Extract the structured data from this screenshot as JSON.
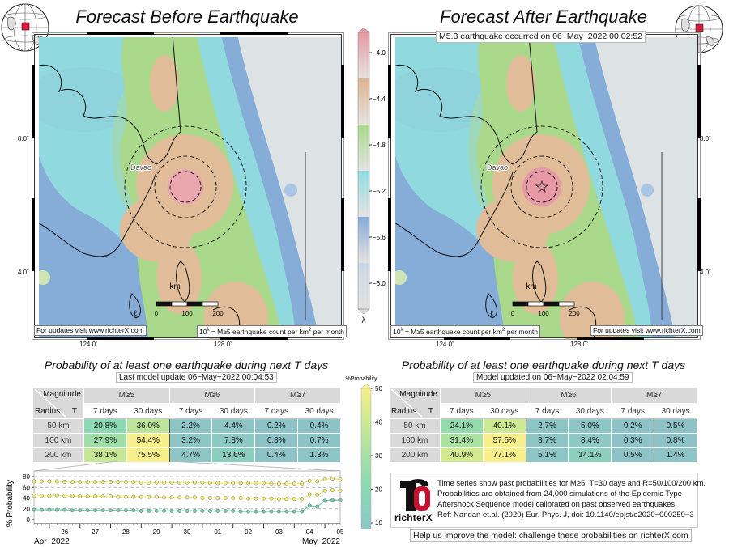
{
  "left_panel": {
    "title": "Forecast Before Earthquake",
    "note_updates": "For updates visit www.richterX.com",
    "note_lambda_prefix": "10",
    "note_lambda_sup": "λ",
    "note_lambda_text": " = M≥5 earthquake count per km",
    "note_lambda_sup2": "2",
    "note_lambda_tail": " per month",
    "lat_labels": [
      "8.0˚",
      "4.0˚"
    ],
    "lon_labels": [
      "124.0˚",
      "128.0˚"
    ],
    "city": "Davao",
    "scale_labels": [
      "0",
      "100",
      "200"
    ],
    "scale_unit": "km",
    "table_title": "Probability of at least one earthquake during next T days",
    "update_text": "Last model update 06−May−2022 00:04:53",
    "table": {
      "corner_top": "Magnitude",
      "corner_left": "Radius",
      "corner_right": "T",
      "magnitudes": [
        "M≥5",
        "M≥6",
        "M≥7"
      ],
      "periods": [
        "7 days",
        "30 days",
        "7 days",
        "30 days",
        "7 days",
        "30 days"
      ],
      "rows": [
        {
          "radius": "50 km",
          "values": [
            "20.8%",
            "36.0%",
            "2.2%",
            "4.4%",
            "0.2%",
            "0.4%"
          ]
        },
        {
          "radius": "100 km",
          "values": [
            "27.9%",
            "54.4%",
            "3.2%",
            "7.8%",
            "0.3%",
            "0.7%"
          ]
        },
        {
          "radius": "200 km",
          "values": [
            "38.1%",
            "75.5%",
            "4.7%",
            "13.6%",
            "0.4%",
            "1.3%"
          ]
        }
      ]
    }
  },
  "right_panel": {
    "title": "Forecast After Earthquake",
    "event_label": "M5.3 earthquake occurred on 06−May−2022 00:02:52",
    "note_updates": "For updates visit www.richterX.com",
    "note_lambda_prefix": "10",
    "note_lambda_sup": "λ",
    "note_lambda_text": " = M≥5 earthquake count per km",
    "note_lambda_sup2": "2",
    "note_lambda_tail": " per month",
    "lat_labels": [
      "8.0˚",
      "4.0˚"
    ],
    "lon_labels": [
      "124.0˚",
      "128.0˚"
    ],
    "city": "Davao",
    "scale_labels": [
      "0",
      "100",
      "200"
    ],
    "scale_unit": "km",
    "table_title": "Probability of at least one earthquake during next T days",
    "update_text": "Model updated on 06−May−2022 02:04:59",
    "table": {
      "corner_top": "Magnitude",
      "corner_left": "Radius",
      "corner_right": "T",
      "magnitudes": [
        "M≥5",
        "M≥6",
        "M≥7"
      ],
      "periods": [
        "7 days",
        "30 days",
        "7 days",
        "30 days",
        "7 days",
        "30 days"
      ],
      "rows": [
        {
          "radius": "50 km",
          "values": [
            "24.1%",
            "40.1%",
            "2.7%",
            "5.0%",
            "0.2%",
            "0.5%"
          ]
        },
        {
          "radius": "100 km",
          "values": [
            "31.4%",
            "57.5%",
            "3.7%",
            "8.4%",
            "0.3%",
            "0.8%"
          ]
        },
        {
          "radius": "200 km",
          "values": [
            "40.9%",
            "77.1%",
            "5.1%",
            "14.1%",
            "0.5%",
            "1.4%"
          ]
        }
      ]
    }
  },
  "lambda_colorbar": {
    "label": "λ",
    "ticks": [
      "−4.0",
      "−4.4",
      "−4.8",
      "−5.2",
      "−5.6",
      "−6.0"
    ],
    "colors": [
      "#e39aa3",
      "#dcb48f",
      "#a8d98a",
      "#8fdde0",
      "#86acd8",
      "#c9d6e4"
    ]
  },
  "prob_colorbar": {
    "label": "%Probability",
    "ticks": [
      "50",
      "40",
      "30",
      "20",
      "10"
    ],
    "stops": [
      {
        "value": 0,
        "color": "#8dc3c6"
      },
      {
        "value": 10,
        "color": "#8dc9c4"
      },
      {
        "value": 20,
        "color": "#8ad8b4"
      },
      {
        "value": 30,
        "color": "#a6e0a6"
      },
      {
        "value": 40,
        "color": "#cde993"
      },
      {
        "value": 50,
        "color": "#f7ef8b"
      }
    ]
  },
  "chart_data": {
    "type": "line",
    "ylabel": "% Probability",
    "ylim": [
      -5,
      85
    ],
    "yticks": [
      0,
      20,
      40,
      60,
      80
    ],
    "x_tick_labels": [
      "26",
      "27",
      "28",
      "29",
      "30",
      "01",
      "02",
      "03",
      "04",
      "05"
    ],
    "x_month_labels": [
      "Apr−2022",
      "May−2022"
    ],
    "grid": "dashed horizontal at 20,40,60,80",
    "x": [
      "2022-04-25T12",
      "2022-04-25T18",
      "2022-04-26T00",
      "2022-04-26T06",
      "2022-04-26T12",
      "2022-04-26T18",
      "2022-04-27T00",
      "2022-04-27T06",
      "2022-04-27T12",
      "2022-04-27T18",
      "2022-04-28T00",
      "2022-04-28T06",
      "2022-04-28T12",
      "2022-04-28T18",
      "2022-04-29T00",
      "2022-04-29T06",
      "2022-04-29T12",
      "2022-04-29T18",
      "2022-04-30T00",
      "2022-04-30T06",
      "2022-04-30T12",
      "2022-04-30T18",
      "2022-05-01T00",
      "2022-05-01T06",
      "2022-05-01T12",
      "2022-05-01T18",
      "2022-05-02T00",
      "2022-05-02T06",
      "2022-05-02T12",
      "2022-05-02T18",
      "2022-05-03T00",
      "2022-05-03T06",
      "2022-05-03T12",
      "2022-05-03T18",
      "2022-05-04T00",
      "2022-05-04T06",
      "2022-05-04T12",
      "2022-05-04T18",
      "2022-05-05T00",
      "2022-05-05T06",
      "2022-05-05T12"
    ],
    "series": [
      {
        "color": "#f0ea78",
        "values": [
          71,
          71,
          71,
          71,
          70,
          70,
          70,
          70,
          70,
          70,
          70,
          70,
          70,
          70,
          69,
          69,
          69,
          69,
          69,
          69,
          69,
          69,
          69,
          68,
          68,
          68,
          68,
          68,
          68,
          68,
          68,
          67,
          67,
          67,
          67,
          67,
          72,
          71,
          75,
          76,
          75
        ]
      },
      {
        "color": "#f0ea78",
        "values": [
          44,
          44,
          44,
          45,
          44,
          44,
          43,
          43,
          43,
          43,
          43,
          42,
          42,
          42,
          42,
          42,
          42,
          41,
          41,
          41,
          41,
          41,
          40,
          40,
          40,
          40,
          40,
          40,
          39,
          39,
          39,
          39,
          38,
          38,
          38,
          38,
          47,
          46,
          54,
          55,
          54
        ]
      },
      {
        "color": "#6fc8a6",
        "values": [
          18,
          18,
          18,
          18,
          18,
          17,
          17,
          17,
          17,
          17,
          17,
          17,
          17,
          17,
          16,
          16,
          16,
          16,
          16,
          16,
          16,
          16,
          16,
          16,
          16,
          16,
          16,
          15,
          15,
          15,
          15,
          15,
          15,
          15,
          15,
          15,
          26,
          24,
          35,
          36,
          36
        ]
      }
    ]
  },
  "info": {
    "logo_text": "richterX",
    "lines": [
      "Time series show past probabilities for M≥5, T=30 days and R=50/100/200 km.",
      "Probabilities are obtained from 24,000 simulations of the Epidemic Type",
      "Aftershock Sequence model calibrated on past observed earthquakes.",
      "Ref: Nandan et.al. (2020) Eur. Phys. J, doi: 10.1140/epjst/e2020−000259−3"
    ],
    "help": "Help us improve the model: challenge these probabilities on richterX.com"
  }
}
